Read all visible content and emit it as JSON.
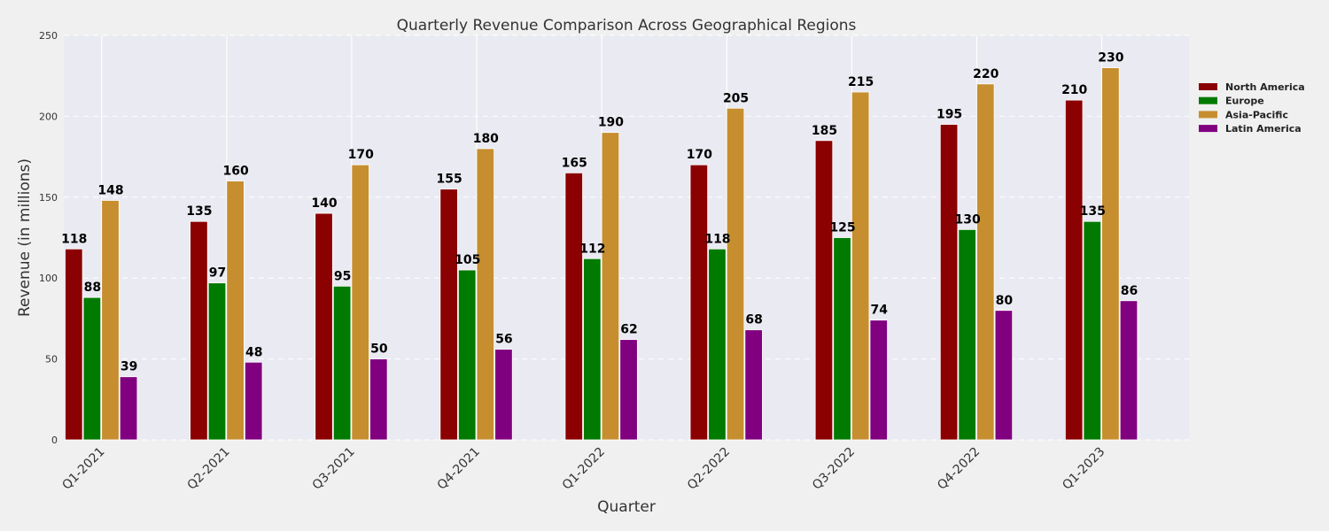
{
  "chart_data": {
    "type": "bar",
    "title": "Quarterly Revenue Comparison Across Geographical Regions",
    "xlabel": "Quarter",
    "ylabel": "Revenue (in millions)",
    "ylim": [
      0,
      250
    ],
    "yticks": [
      0,
      50,
      100,
      150,
      200,
      250
    ],
    "grid": true,
    "legend_position": "right",
    "categories": [
      "Q1-2021",
      "Q2-2021",
      "Q3-2021",
      "Q4-2021",
      "Q1-2022",
      "Q2-2022",
      "Q3-2022",
      "Q4-2022",
      "Q1-2023"
    ],
    "series": [
      {
        "name": "North America",
        "color": "#8b0000",
        "values": [
          118,
          135,
          140,
          155,
          165,
          170,
          185,
          195,
          210
        ]
      },
      {
        "name": "Europe",
        "color": "#007a00",
        "values": [
          88,
          97,
          95,
          105,
          112,
          118,
          125,
          130,
          135
        ]
      },
      {
        "name": "Asia-Pacific",
        "color": "#c68e2f",
        "values": [
          148,
          160,
          170,
          180,
          190,
          205,
          215,
          220,
          230
        ]
      },
      {
        "name": "Latin America",
        "color": "#800080",
        "values": [
          39,
          48,
          50,
          56,
          62,
          68,
          74,
          80,
          86
        ]
      }
    ]
  }
}
